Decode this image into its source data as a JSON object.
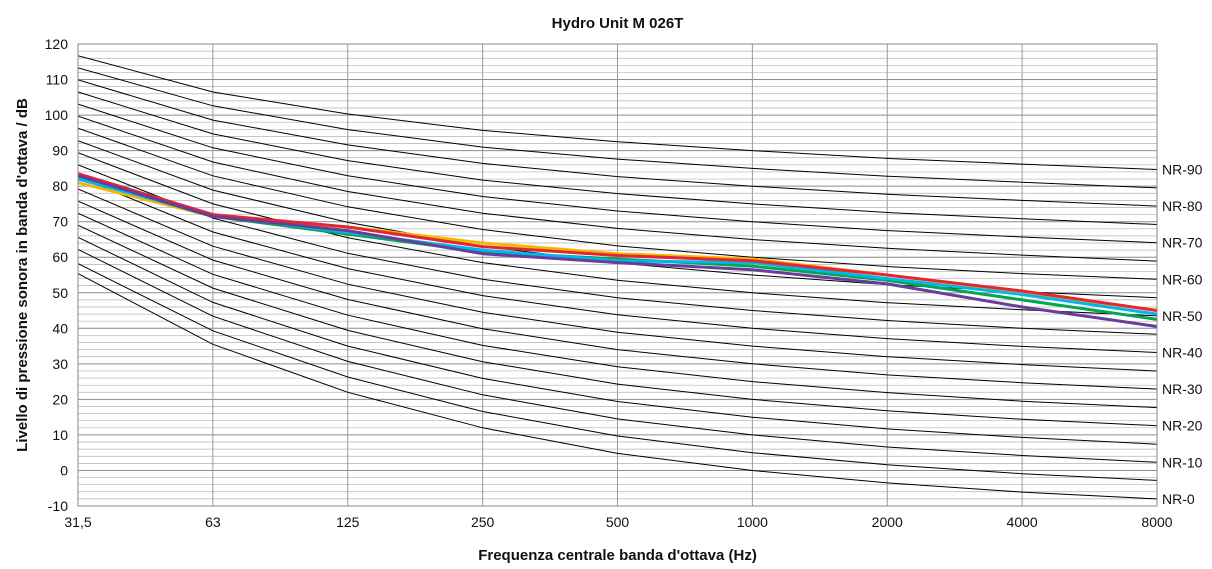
{
  "chart_data": {
    "type": "line",
    "title": "Hydro Unit M 026T",
    "xlabel": "Frequenza centrale banda d'ottava (Hz)",
    "ylabel": "Livello di pressione sonora in banda d'ottava / dB",
    "x_scale": "log2",
    "categories": [
      "31,5",
      "63",
      "125",
      "250",
      "500",
      "1000",
      "2000",
      "4000",
      "8000"
    ],
    "x": [
      31.5,
      63,
      125,
      250,
      500,
      1000,
      2000,
      4000,
      8000
    ],
    "ylim": [
      -10,
      120
    ],
    "yticks": [
      -10,
      0,
      10,
      20,
      30,
      40,
      50,
      60,
      70,
      80,
      90,
      100,
      110,
      120
    ],
    "ytick_labels": [
      "-10",
      "0",
      "10",
      "20",
      "30",
      "40",
      "50",
      "60",
      "70",
      "80",
      "90",
      "100",
      "110",
      "120"
    ],
    "grid": true,
    "nr_curve_labels": [
      {
        "label": "NR-0",
        "nr": 0
      },
      {
        "label": "NR-10",
        "nr": 10
      },
      {
        "label": "NR-20",
        "nr": 20
      },
      {
        "label": "NR-30",
        "nr": 30
      },
      {
        "label": "NR-40",
        "nr": 40
      },
      {
        "label": "NR-50",
        "nr": 50
      },
      {
        "label": "NR-60",
        "nr": 60
      },
      {
        "label": "NR-70",
        "nr": 70
      },
      {
        "label": "NR-80",
        "nr": 80
      },
      {
        "label": "NR-90",
        "nr": 90
      }
    ],
    "reference_curves": [
      {
        "nr": 0,
        "values": [
          55.4,
          35.5,
          22.0,
          12.0,
          4.8,
          0.0,
          -3.5,
          -6.1,
          -8.0
        ]
      },
      {
        "nr": 5,
        "values": [
          58.2,
          39.3,
          26.3,
          16.6,
          9.7,
          5.0,
          1.6,
          -0.9,
          -2.8
        ]
      },
      {
        "nr": 10,
        "values": [
          62.2,
          43.4,
          30.7,
          21.3,
          14.5,
          10.0,
          6.6,
          4.2,
          2.3
        ]
      },
      {
        "nr": 15,
        "values": [
          65.6,
          47.3,
          35.0,
          25.9,
          19.4,
          15.0,
          11.7,
          9.3,
          7.4
        ]
      },
      {
        "nr": 20,
        "values": [
          69.0,
          51.3,
          39.4,
          30.6,
          24.3,
          20.0,
          16.8,
          14.4,
          12.6
        ]
      },
      {
        "nr": 25,
        "values": [
          72.4,
          55.2,
          43.7,
          35.2,
          29.2,
          25.0,
          21.9,
          19.5,
          17.7
        ]
      },
      {
        "nr": 30,
        "values": [
          75.8,
          59.2,
          48.1,
          39.9,
          34.0,
          30.0,
          26.9,
          24.7,
          22.9
        ]
      },
      {
        "nr": 35,
        "values": [
          79.2,
          63.1,
          52.4,
          44.5,
          38.9,
          35.0,
          32.0,
          29.8,
          28.0
        ]
      },
      {
        "nr": 40,
        "values": [
          82.6,
          67.1,
          56.8,
          49.2,
          43.8,
          40.0,
          37.1,
          34.9,
          33.2
        ]
      },
      {
        "nr": 45,
        "values": [
          86.0,
          71.0,
          61.1,
          53.8,
          48.6,
          45.0,
          42.2,
          40.0,
          38.3
        ]
      },
      {
        "nr": 50,
        "values": [
          89.4,
          75.0,
          65.5,
          58.5,
          53.5,
          50.0,
          47.2,
          45.2,
          43.5
        ]
      },
      {
        "nr": 55,
        "values": [
          92.8,
          78.9,
          69.8,
          63.1,
          58.4,
          55.0,
          52.3,
          50.3,
          48.6
        ]
      },
      {
        "nr": 60,
        "values": [
          96.3,
          82.9,
          74.2,
          67.8,
          63.2,
          60.0,
          57.4,
          55.4,
          53.8
        ]
      },
      {
        "nr": 65,
        "values": [
          99.7,
          86.8,
          78.5,
          72.4,
          68.1,
          65.0,
          62.5,
          60.6,
          58.9
        ]
      },
      {
        "nr": 70,
        "values": [
          103.1,
          90.8,
          82.9,
          77.1,
          73.0,
          70.0,
          67.5,
          65.7,
          64.1
        ]
      },
      {
        "nr": 75,
        "values": [
          106.5,
          94.7,
          87.2,
          81.7,
          77.9,
          75.0,
          72.6,
          70.8,
          69.2
        ]
      },
      {
        "nr": 80,
        "values": [
          109.9,
          98.6,
          91.6,
          86.4,
          82.7,
          80.0,
          77.7,
          76.0,
          74.4
        ]
      },
      {
        "nr": 85,
        "values": [
          113.3,
          102.6,
          95.9,
          91.0,
          87.6,
          85.0,
          82.8,
          81.1,
          79.5
        ]
      },
      {
        "nr": 90,
        "values": [
          116.7,
          106.5,
          100.3,
          95.7,
          92.5,
          90.0,
          87.8,
          86.2,
          84.7
        ]
      }
    ],
    "series": [
      {
        "color": "#f5b800",
        "values": [
          81.0,
          71.5,
          68.5,
          64.0,
          61.0,
          59.5,
          55.0,
          50.0,
          45.0
        ]
      },
      {
        "color": "#00a651",
        "values": [
          82.5,
          71.5,
          66.5,
          61.5,
          59.5,
          57.5,
          53.5,
          48.0,
          42.5
        ]
      },
      {
        "color": "#00b7eb",
        "values": [
          82.0,
          71.8,
          67.0,
          62.0,
          59.0,
          58.5,
          54.0,
          49.5,
          44.0
        ]
      },
      {
        "color": "#e32636",
        "values": [
          83.5,
          72.0,
          68.5,
          63.0,
          60.5,
          59.0,
          55.0,
          50.5,
          45.0
        ]
      },
      {
        "color": "#6a3d9a",
        "values": [
          83.0,
          71.5,
          67.5,
          61.0,
          58.5,
          56.5,
          52.5,
          46.0,
          40.5
        ]
      }
    ],
    "colors": {
      "grid": "#999999",
      "reference": "#000000",
      "background": "#ffffff"
    }
  }
}
